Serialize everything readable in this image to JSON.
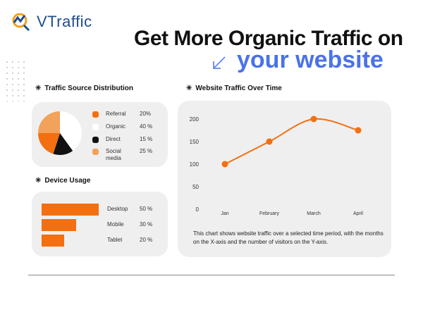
{
  "brand": {
    "name": "VTraffic"
  },
  "headline": {
    "line1": "Get More Organic Traffic on",
    "line2": "your website"
  },
  "sections": {
    "traffic_source": "Traffic Source Distribution",
    "device": "Device Usage",
    "over_time": "Website Traffic Over Time"
  },
  "colors": {
    "orange": "#f36f10",
    "light_orange": "#f2a25a",
    "black": "#111111",
    "white": "#ffffff",
    "blue": "#4a72e8",
    "card": "#efefef"
  },
  "description": "This chart shows website traffic over a selected time period, with the months on the X-axis and the number of visitors on the Y-axis.",
  "chart_data": [
    {
      "type": "pie",
      "title": "Traffic Source Distribution",
      "legend": [
        {
          "label": "Referral",
          "value_label": "20%",
          "value": 20,
          "color": "#f36f10"
        },
        {
          "label": "Organic",
          "value_label": "40 %",
          "value": 40,
          "color": "#ffffff"
        },
        {
          "label": "Direct",
          "value_label": "15 %",
          "value": 15,
          "color": "#111111"
        },
        {
          "label": "Social media",
          "value_label": "25 %",
          "value": 25,
          "color": "#f2a25a"
        }
      ]
    },
    {
      "type": "bar",
      "title": "Device Usage",
      "categories": [
        "Desktop",
        "Mobile",
        "Tablet"
      ],
      "values": [
        50,
        30,
        20
      ],
      "value_labels": [
        "50 %",
        "30 %",
        "20 %"
      ]
    },
    {
      "type": "line",
      "title": "Website Traffic Over Time",
      "categories": [
        "Jan",
        "February",
        "March",
        "April"
      ],
      "values": [
        100,
        150,
        200,
        175
      ],
      "ylim": [
        0,
        200
      ],
      "yticks": [
        "0",
        "50",
        "100",
        "150",
        "200"
      ],
      "grid": false
    }
  ]
}
